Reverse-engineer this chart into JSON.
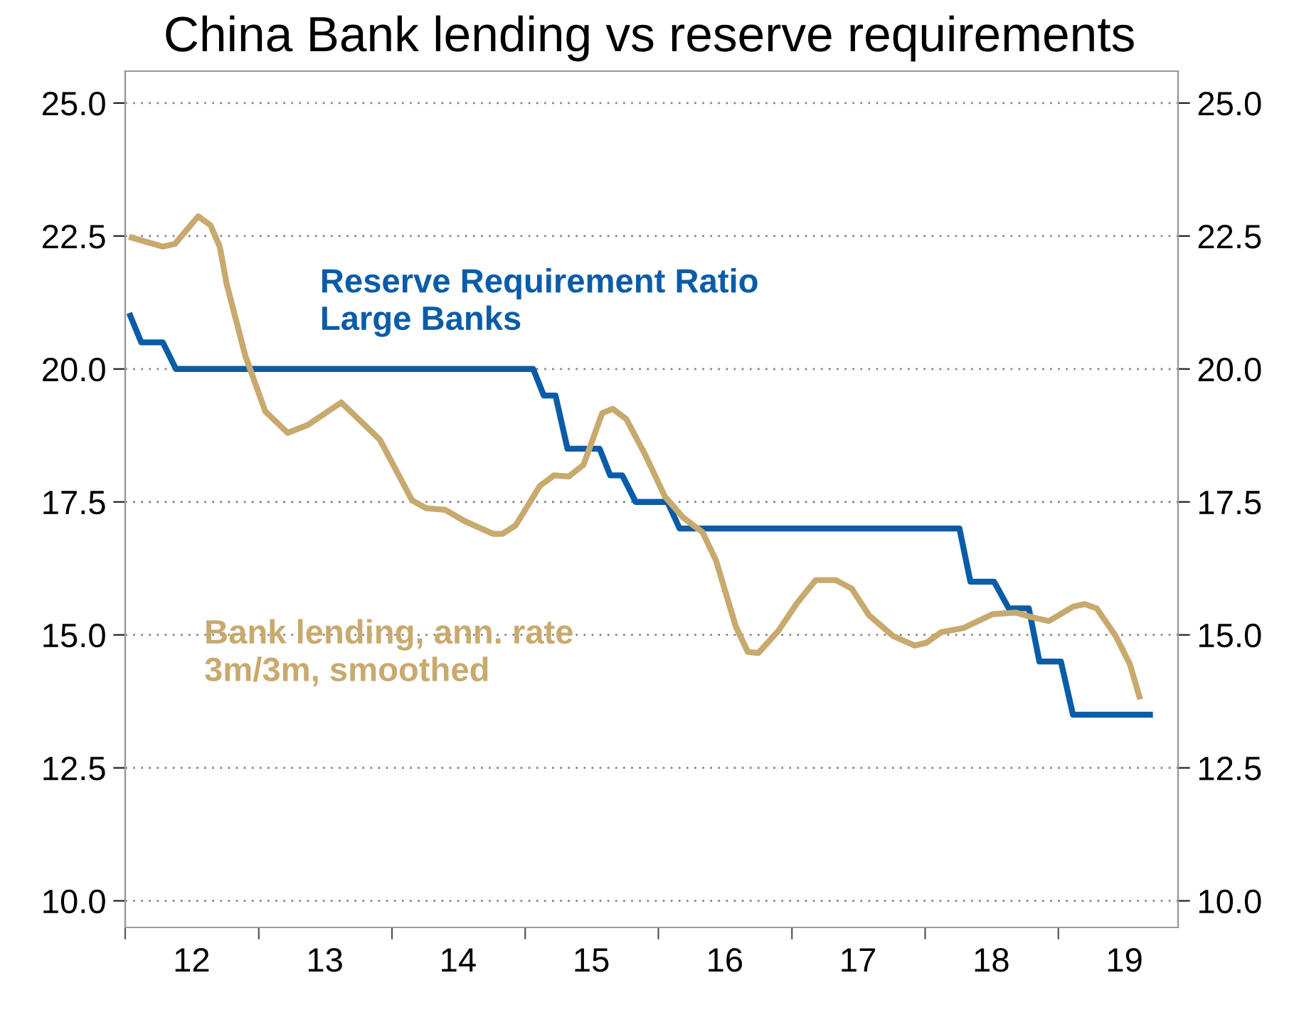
{
  "chart_data": {
    "type": "line",
    "title": "China Bank lending vs reserve requirements",
    "xlim": [
      "2012-01-01",
      "2019-11-25"
    ],
    "xticks": [
      {
        "value": "2012-01-01",
        "label": null
      },
      {
        "value": "2013-01-01",
        "label": null
      },
      {
        "value": "2014-01-01",
        "label": null
      },
      {
        "value": "2015-01-01",
        "label": null
      },
      {
        "value": "2016-01-01",
        "label": null
      },
      {
        "value": "2017-01-01",
        "label": null
      },
      {
        "value": "2018-01-01",
        "label": null
      },
      {
        "value": "2019-01-01",
        "label": null
      },
      {
        "value": "2012-07-01",
        "label": "12"
      },
      {
        "value": "2013-07-01",
        "label": "13"
      },
      {
        "value": "2014-07-01",
        "label": "14"
      },
      {
        "value": "2015-07-01",
        "label": "15"
      },
      {
        "value": "2016-07-01",
        "label": "16"
      },
      {
        "value": "2017-07-01",
        "label": "17"
      },
      {
        "value": "2018-07-01",
        "label": "18"
      },
      {
        "value": "2019-07-01",
        "label": "19"
      }
    ],
    "ylim": [
      9.5,
      25.6
    ],
    "yticks": [
      {
        "value": 10,
        "label": "10.0"
      },
      {
        "value": 12.5,
        "label": "12.5"
      },
      {
        "value": 15,
        "label": "15.0"
      },
      {
        "value": 17.5,
        "label": "17.5"
      },
      {
        "value": 20,
        "label": "20.0"
      },
      {
        "value": 22.5,
        "label": "22.5"
      },
      {
        "value": 25,
        "label": "25.0"
      }
    ],
    "y2lim": [
      9.5,
      25.6
    ],
    "y2ticks": [
      {
        "value": 10,
        "label": "10.0"
      },
      {
        "value": 12.5,
        "label": "12.5"
      },
      {
        "value": 15,
        "label": "15.0"
      },
      {
        "value": 17.5,
        "label": "17.5"
      },
      {
        "value": 20,
        "label": "20.0"
      },
      {
        "value": 22.5,
        "label": "22.5"
      },
      {
        "value": 25,
        "label": "25.0"
      }
    ],
    "grid": "y",
    "legend": false,
    "series": [
      {
        "name": "Reserve Requirement Ratio\nLarge Banks",
        "color": "#0a5ca8",
        "x": [
          "2012-01-15",
          "2012-02-14",
          "2012-04-13",
          "2012-05-19",
          "2015-01-23",
          "2015-02-21",
          "2015-03-25",
          "2015-04-27",
          "2015-07-24",
          "2015-08-22",
          "2015-09-24",
          "2015-10-31",
          "2016-01-26",
          "2016-02-28",
          "2018-04-05",
          "2018-05-05",
          "2018-07-09",
          "2018-08-18",
          "2018-10-12",
          "2018-11-10",
          "2019-01-08",
          "2019-02-10",
          "2019-09-09"
        ],
        "values": [
          21,
          20.5,
          20.5,
          20,
          20,
          19.5,
          19.5,
          18.5,
          18.5,
          18,
          18,
          17.5,
          17.5,
          17,
          17,
          16,
          16,
          15.5,
          15.5,
          14.5,
          14.5,
          13.5,
          13.5
        ]
      },
      {
        "name": "Bank lending, ann. rate\n3m/3m, smoothed",
        "color": "#c8a96e",
        "x": [
          "2012-01-19",
          "2012-04-13",
          "2012-05-16",
          "2012-07-19",
          "2012-08-22",
          "2012-09-16",
          "2012-10-05",
          "2012-11-25",
          "2013-01-19",
          "2013-03-21",
          "2013-05-16",
          "2013-08-15",
          "2013-11-29",
          "2014-02-25",
          "2014-04-05",
          "2014-05-27",
          "2014-07-19",
          "2014-10-05",
          "2014-10-31",
          "2014-12-06",
          "2015-02-10",
          "2015-03-21",
          "2015-05-01",
          "2015-06-10",
          "2015-07-31",
          "2015-08-29",
          "2015-10-05",
          "2015-11-25",
          "2016-01-19",
          "2016-03-10",
          "2016-05-01",
          "2016-06-07",
          "2016-07-31",
          "2016-09-02",
          "2016-10-01",
          "2016-11-25",
          "2017-01-15",
          "2017-03-07",
          "2017-05-01",
          "2017-06-14",
          "2017-07-31",
          "2017-10-05",
          "2017-12-03",
          "2018-01-04",
          "2018-02-14",
          "2018-04-16",
          "2018-07-05",
          "2018-09-06",
          "2018-10-16",
          "2018-12-06",
          "2019-02-10",
          "2019-03-14",
          "2019-04-16",
          "2019-06-07",
          "2019-07-16",
          "2019-08-11"
        ],
        "values": [
          22.47,
          22.3,
          22.35,
          22.87,
          22.7,
          22.3,
          21.6,
          20.25,
          19.2,
          18.8,
          18.95,
          19.37,
          18.67,
          17.53,
          17.38,
          17.35,
          17.14,
          16.9,
          16.9,
          17.06,
          17.8,
          18.0,
          17.98,
          18.2,
          19.17,
          19.25,
          19.06,
          18.4,
          17.6,
          17.2,
          16.93,
          16.4,
          15.16,
          14.68,
          14.66,
          15.08,
          15.6,
          16.03,
          16.03,
          15.87,
          15.37,
          14.98,
          14.8,
          14.85,
          15.05,
          15.13,
          15.39,
          15.42,
          15.34,
          15.26,
          15.53,
          15.58,
          15.5,
          14.98,
          14.45,
          13.84
        ]
      }
    ]
  }
}
